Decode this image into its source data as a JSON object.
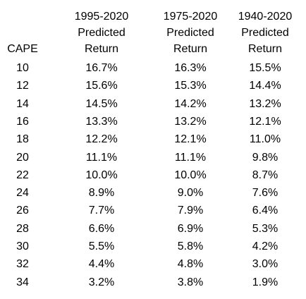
{
  "table": {
    "headers": {
      "cape": "CAPE",
      "col1": [
        "1995-2020",
        "Predicted",
        "Return"
      ],
      "col2": [
        "1975-2020",
        "Predicted",
        "Return"
      ],
      "col3": [
        "1940-2020",
        "Predicted",
        "Return"
      ]
    },
    "rows": [
      [
        "10",
        "16.7%",
        "16.3%",
        "15.5%"
      ],
      [
        "12",
        "15.6%",
        "15.3%",
        "14.4%"
      ],
      [
        "14",
        "14.5%",
        "14.2%",
        "13.2%"
      ],
      [
        "16",
        "13.3%",
        "13.2%",
        "12.1%"
      ],
      [
        "18",
        "12.2%",
        "12.1%",
        "11.0%"
      ],
      [
        "20",
        "11.1%",
        "11.1%",
        "9.8%"
      ],
      [
        "22",
        "10.0%",
        "10.0%",
        "8.7%"
      ],
      [
        "24",
        "8.9%",
        "9.0%",
        "7.6%"
      ],
      [
        "26",
        "7.7%",
        "7.9%",
        "6.4%"
      ],
      [
        "28",
        "6.6%",
        "6.9%",
        "5.3%"
      ],
      [
        "30",
        "5.5%",
        "5.8%",
        "4.2%"
      ],
      [
        "32",
        "4.4%",
        "4.8%",
        "3.0%"
      ],
      [
        "34",
        "3.2%",
        "3.8%",
        "1.9%"
      ]
    ]
  }
}
